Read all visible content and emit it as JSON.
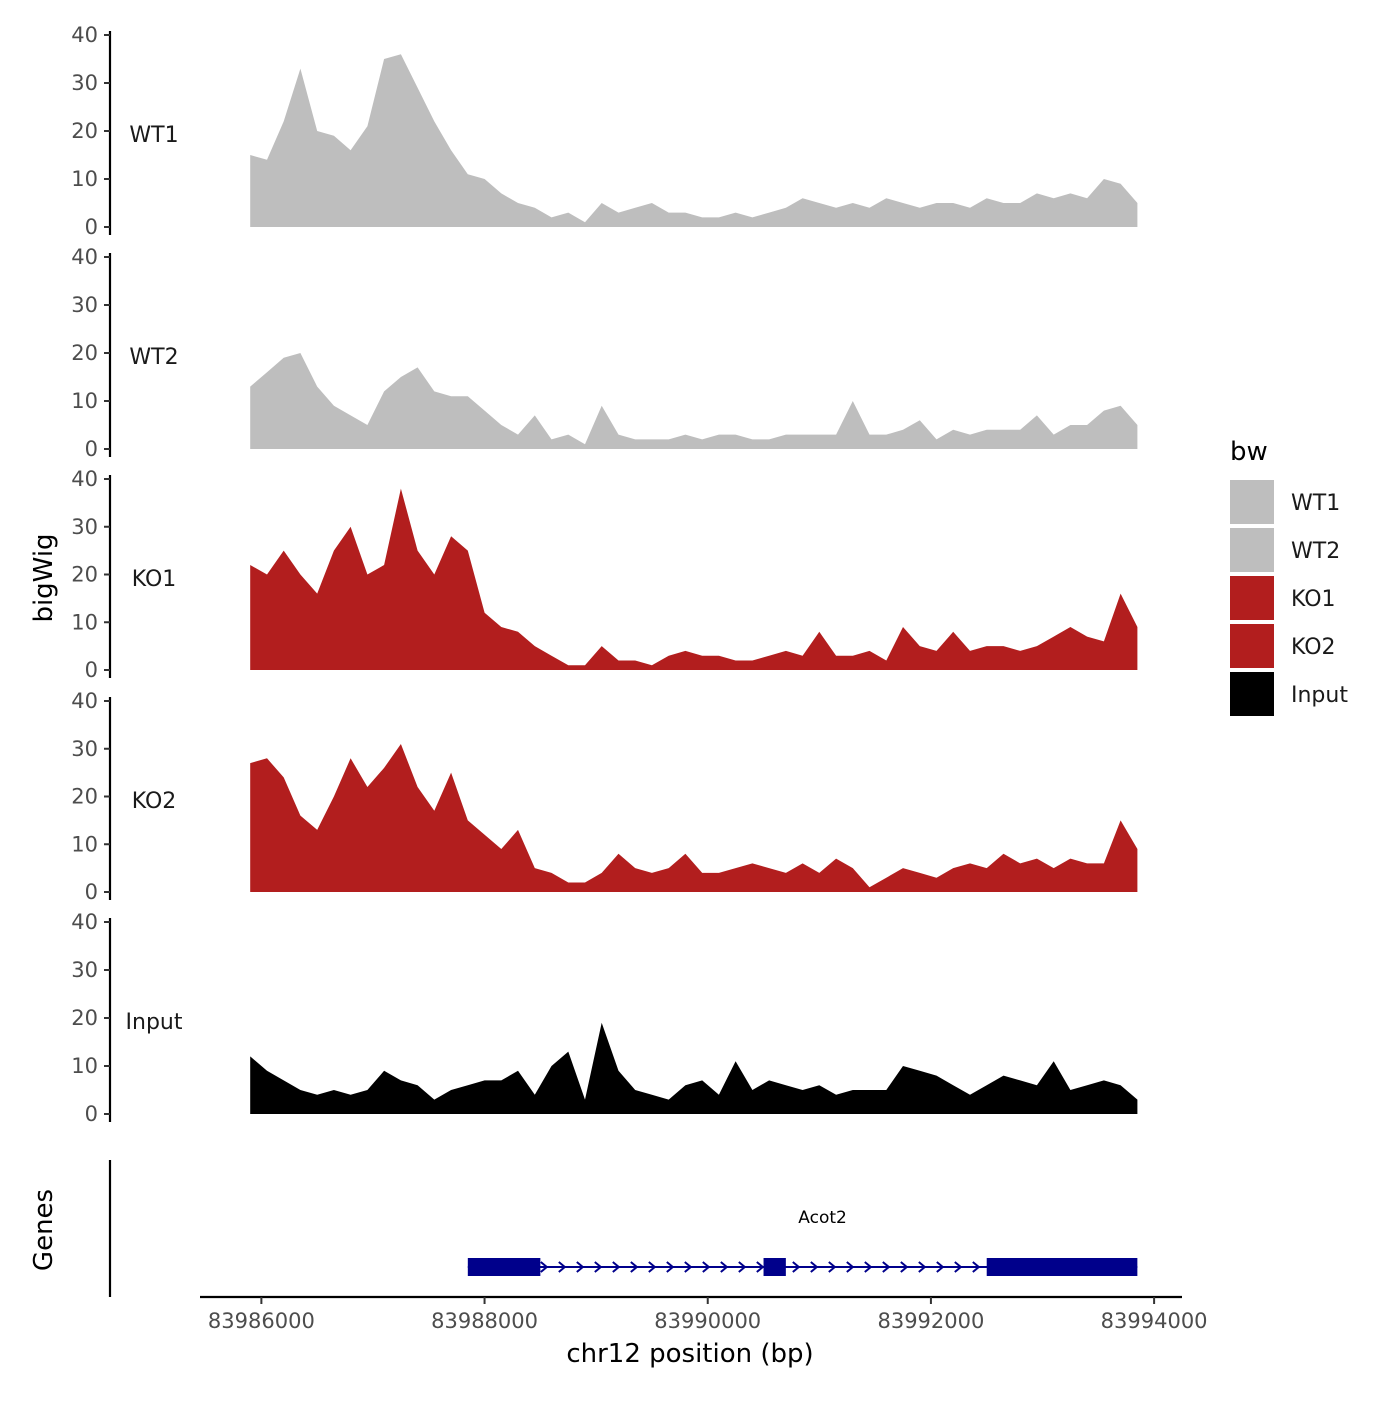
{
  "chart_data": {
    "type": "area",
    "title": "",
    "xlabel": "chr12 position (bp)",
    "ylabel": "bigWig",
    "genes_track_label": "Genes",
    "xlim": [
      83985450,
      83994250
    ],
    "x_ticks": [
      83986000,
      83988000,
      83990000,
      83992000,
      83994000
    ],
    "x_tick_labels": [
      "83986000",
      "83988000",
      "83990000",
      "83992000",
      "83994000"
    ],
    "ylim": [
      0,
      40
    ],
    "y_ticks": [
      0,
      10,
      20,
      30,
      40
    ],
    "y_tick_labels": [
      "0",
      "10",
      "20",
      "30",
      "40"
    ],
    "legend": {
      "title": "bw",
      "position": "right",
      "entries": [
        {
          "label": "WT1",
          "color": "#bebebe"
        },
        {
          "label": "WT2",
          "color": "#bebebe"
        },
        {
          "label": "KO1",
          "color": "#b21e1e"
        },
        {
          "label": "KO2",
          "color": "#b21e1e"
        },
        {
          "label": "Input",
          "color": "#000000"
        }
      ]
    },
    "x": [
      83985900,
      83986050,
      83986200,
      83986350,
      83986500,
      83986650,
      83986800,
      83986950,
      83987100,
      83987250,
      83987400,
      83987550,
      83987700,
      83987850,
      83988000,
      83988150,
      83988300,
      83988450,
      83988600,
      83988750,
      83988900,
      83989050,
      83989200,
      83989350,
      83989500,
      83989650,
      83989800,
      83989950,
      83990100,
      83990250,
      83990400,
      83990550,
      83990700,
      83990850,
      83991000,
      83991150,
      83991300,
      83991450,
      83991600,
      83991750,
      83991900,
      83992050,
      83992200,
      83992350,
      83992500,
      83992650,
      83992800,
      83992950,
      83993100,
      83993250,
      83993400,
      83993550,
      83993700,
      83993850
    ],
    "series": [
      {
        "name": "WT1",
        "color": "#bebebe",
        "values": [
          15,
          14,
          22,
          33,
          20,
          19,
          16,
          21,
          35,
          36,
          29,
          22,
          16,
          11,
          10,
          7,
          5,
          4,
          2,
          3,
          1,
          5,
          3,
          4,
          5,
          3,
          3,
          2,
          2,
          3,
          2,
          3,
          4,
          6,
          5,
          4,
          5,
          4,
          6,
          5,
          4,
          5,
          5,
          4,
          6,
          5,
          5,
          7,
          6,
          7,
          6,
          10,
          9,
          5
        ]
      },
      {
        "name": "WT2",
        "color": "#bebebe",
        "values": [
          13,
          16,
          19,
          20,
          13,
          9,
          7,
          5,
          12,
          15,
          17,
          12,
          11,
          11,
          8,
          5,
          3,
          7,
          2,
          3,
          1,
          9,
          3,
          2,
          2,
          2,
          3,
          2,
          3,
          3,
          2,
          2,
          3,
          3,
          3,
          3,
          10,
          3,
          3,
          4,
          6,
          2,
          4,
          3,
          4,
          4,
          4,
          7,
          3,
          5,
          5,
          8,
          9,
          5
        ]
      },
      {
        "name": "KO1",
        "color": "#b21e1e",
        "values": [
          22,
          20,
          25,
          20,
          16,
          25,
          30,
          20,
          22,
          38,
          25,
          20,
          28,
          25,
          12,
          9,
          8,
          5,
          3,
          1,
          1,
          5,
          2,
          2,
          1,
          3,
          4,
          3,
          3,
          2,
          2,
          3,
          4,
          3,
          8,
          3,
          3,
          4,
          2,
          9,
          5,
          4,
          8,
          4,
          5,
          5,
          4,
          5,
          7,
          9,
          7,
          6,
          16,
          9
        ]
      },
      {
        "name": "KO2",
        "color": "#b21e1e",
        "values": [
          27,
          28,
          24,
          16,
          13,
          20,
          28,
          22,
          26,
          31,
          22,
          17,
          25,
          15,
          12,
          9,
          13,
          5,
          4,
          2,
          2,
          4,
          8,
          5,
          4,
          5,
          8,
          4,
          4,
          5,
          6,
          5,
          4,
          6,
          4,
          7,
          5,
          1,
          3,
          5,
          4,
          3,
          5,
          6,
          5,
          8,
          6,
          7,
          5,
          7,
          6,
          6,
          15,
          9
        ]
      },
      {
        "name": "Input",
        "color": "#000000",
        "values": [
          12,
          9,
          7,
          5,
          4,
          5,
          4,
          5,
          9,
          7,
          6,
          3,
          5,
          6,
          7,
          7,
          9,
          4,
          10,
          13,
          3,
          19,
          9,
          5,
          4,
          3,
          6,
          7,
          4,
          11,
          5,
          7,
          6,
          5,
          6,
          4,
          5,
          5,
          5,
          10,
          9,
          8,
          6,
          4,
          6,
          8,
          7,
          6,
          11,
          5,
          6,
          7,
          6,
          3
        ]
      }
    ],
    "genes": [
      {
        "name": "Acot2",
        "color": "#00008b",
        "strand": "+",
        "start": 83987850,
        "end": 83993850,
        "exons": [
          [
            83987850,
            83988500
          ],
          [
            83990500,
            83990700
          ],
          [
            83992500,
            83993850
          ]
        ]
      }
    ]
  }
}
